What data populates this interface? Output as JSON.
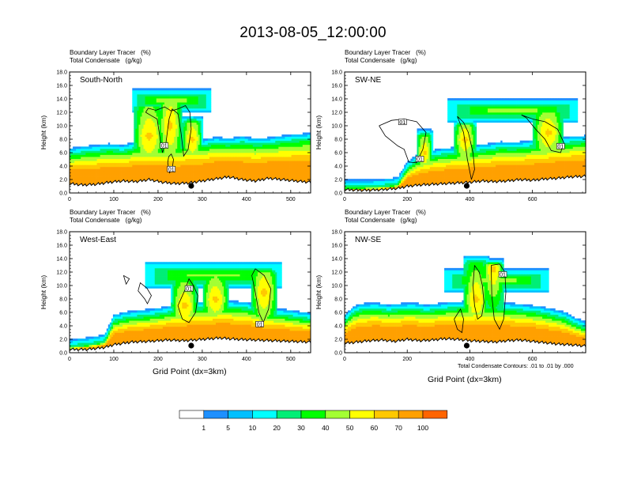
{
  "title": "2013-08-05_12:00:00",
  "header_line1": "Boundary Layer Tracer   (%)",
  "header_line2": "Total Condensate   (g/kg)",
  "x_axis_label": "Grid Point (dx=3km)",
  "contour_note": "Total Condensate Contours: .01 to .01 by .000",
  "colors": {
    "bins": [
      "#ffffff",
      "#1e90ff",
      "#00bfff",
      "#00ffff",
      "#00ee76",
      "#00ff00",
      "#a3ff33",
      "#ffff00",
      "#ffc800",
      "#ffa000",
      "#ff6400",
      "#ff3200",
      "#e60000"
    ]
  },
  "colorbar": {
    "labels": [
      "1",
      "5",
      "10",
      "20",
      "30",
      "40",
      "50",
      "60",
      "70",
      "100"
    ]
  },
  "chart_data": [
    {
      "type": "heatmap",
      "panel_title": "South-North",
      "ylabel": "Height (km)",
      "yticks": [
        "0.0",
        "2.0",
        "4.0",
        "6.0",
        "8.0",
        "10.0",
        "12.0",
        "14.0",
        "16.0",
        "18.0"
      ],
      "ylim": [
        0,
        18
      ],
      "xticks": [
        0,
        100,
        200,
        300,
        400,
        500
      ],
      "xlim": [
        0,
        545
      ],
      "marker_x": 275,
      "terrain": [
        [
          0,
          1.2
        ],
        [
          30,
          1.0
        ],
        [
          60,
          1.1
        ],
        [
          90,
          1.4
        ],
        [
          120,
          1.6
        ],
        [
          150,
          1.5
        ],
        [
          180,
          1.8
        ],
        [
          210,
          1.4
        ],
        [
          240,
          1.2
        ],
        [
          270,
          1.3
        ],
        [
          300,
          1.6
        ],
        [
          330,
          1.9
        ],
        [
          360,
          2.2
        ],
        [
          390,
          1.8
        ],
        [
          420,
          1.6
        ],
        [
          450,
          2.0
        ],
        [
          480,
          1.8
        ],
        [
          510,
          1.6
        ],
        [
          545,
          1.4
        ]
      ],
      "pbl_top": [
        [
          0,
          5.5
        ],
        [
          30,
          5.8
        ],
        [
          60,
          6.0
        ],
        [
          90,
          6.2
        ],
        [
          120,
          6.0
        ],
        [
          150,
          6.5
        ],
        [
          180,
          6.3
        ],
        [
          210,
          6.6
        ],
        [
          240,
          6.4
        ],
        [
          270,
          7.0
        ],
        [
          300,
          6.8
        ],
        [
          330,
          7.2
        ],
        [
          360,
          7.0
        ],
        [
          390,
          7.3
        ],
        [
          420,
          7.0
        ],
        [
          450,
          7.1
        ],
        [
          480,
          7.4
        ],
        [
          510,
          7.6
        ],
        [
          545,
          7.8
        ]
      ],
      "plumes": [
        {
          "x0": 145,
          "x1": 215,
          "base": 5,
          "top": 13.8,
          "core": 8.5
        },
        {
          "x0": 200,
          "x1": 255,
          "base": 5,
          "top": 15.0,
          "core": 10
        },
        {
          "x0": 255,
          "x1": 300,
          "base": 5,
          "top": 11.5,
          "core": 8
        }
      ],
      "anvil": {
        "x0": 140,
        "x1": 320,
        "base": 12.0,
        "top": 15.5
      },
      "contours": [
        [
          [
            172,
            12
          ],
          [
            185,
            11.5
          ],
          [
            198,
            11.0
          ],
          [
            205,
            8.0
          ],
          [
            210,
            6.0
          ],
          [
            218,
            7.5
          ],
          [
            225,
            11
          ],
          [
            232,
            12.5
          ],
          [
            245,
            11.8
          ],
          [
            252,
            9
          ],
          [
            258,
            5.5
          ],
          [
            268,
            6.5
          ],
          [
            275,
            9.5
          ],
          [
            272,
            12
          ],
          [
            262,
            13
          ],
          [
            245,
            12.5
          ],
          [
            230,
            12.2
          ],
          [
            215,
            12.8
          ],
          [
            195,
            12.3
          ],
          [
            178,
            12.6
          ],
          [
            172,
            12
          ]
        ],
        [
          [
            222,
            4.5
          ],
          [
            226,
            3.0
          ],
          [
            232,
            3.5
          ],
          [
            235,
            5.0
          ],
          [
            230,
            5.8
          ],
          [
            224,
            5.4
          ],
          [
            222,
            4.5
          ]
        ]
      ],
      "boxes": [
        {
          "x": 214,
          "y": 7.0,
          "label": "01"
        },
        {
          "x": 230,
          "y": 3.5,
          "label": "01"
        }
      ]
    },
    {
      "type": "heatmap",
      "panel_title": "SW-NE",
      "ylabel": "Height (km)",
      "yticks": [
        "0.0",
        "2.0",
        "4.0",
        "6.0",
        "8.0",
        "10.0",
        "12.0",
        "14.0",
        "16.0",
        "18.0"
      ],
      "ylim": [
        0,
        18
      ],
      "xticks": [
        0,
        200,
        400,
        600
      ],
      "xlim": [
        0,
        770
      ],
      "marker_x": 390,
      "terrain": [
        [
          0,
          0.3
        ],
        [
          60,
          0.2
        ],
        [
          120,
          0.3
        ],
        [
          170,
          0.5
        ],
        [
          200,
          0.8
        ],
        [
          240,
          1.0
        ],
        [
          280,
          1.1
        ],
        [
          320,
          1.2
        ],
        [
          360,
          1.3
        ],
        [
          400,
          1.4
        ],
        [
          440,
          1.6
        ],
        [
          480,
          1.5
        ],
        [
          520,
          1.6
        ],
        [
          560,
          1.8
        ],
        [
          600,
          1.7
        ],
        [
          640,
          1.9
        ],
        [
          680,
          2.0
        ],
        [
          720,
          2.2
        ],
        [
          770,
          2.3
        ]
      ],
      "pbl_top": [
        [
          0,
          0.8
        ],
        [
          60,
          0.8
        ],
        [
          120,
          0.9
        ],
        [
          170,
          1.2
        ],
        [
          200,
          3.5
        ],
        [
          230,
          4.5
        ],
        [
          260,
          5.0
        ],
        [
          300,
          5.4
        ],
        [
          340,
          5.6
        ],
        [
          380,
          5.8
        ],
        [
          420,
          6.0
        ],
        [
          460,
          6.2
        ],
        [
          500,
          6.5
        ],
        [
          540,
          6.4
        ],
        [
          580,
          6.6
        ],
        [
          620,
          6.8
        ],
        [
          660,
          7.0
        ],
        [
          700,
          7.2
        ],
        [
          740,
          7.3
        ],
        [
          770,
          7.4
        ]
      ],
      "plumes": [
        {
          "x0": 230,
          "x1": 280,
          "base": 4,
          "top": 9.5,
          "core": 6
        },
        {
          "x0": 350,
          "x1": 420,
          "base": 5,
          "top": 11.0,
          "core": 8
        },
        {
          "x0": 600,
          "x1": 700,
          "base": 6,
          "top": 13.0,
          "core": 9
        }
      ],
      "anvil": {
        "x0": 330,
        "x1": 745,
        "base": 10.5,
        "top": 14.0
      },
      "contours": [
        [
          [
            110,
            10
          ],
          [
            150,
            10.8
          ],
          [
            190,
            11.0
          ],
          [
            230,
            10.6
          ],
          [
            260,
            9.0
          ],
          [
            250,
            6.5
          ],
          [
            230,
            4.5
          ],
          [
            205,
            4.6
          ],
          [
            190,
            6.5
          ],
          [
            170,
            7.0
          ],
          [
            130,
            8.5
          ],
          [
            110,
            10
          ]
        ],
        [
          [
            360,
            11.4
          ],
          [
            380,
            10.5
          ],
          [
            395,
            9.0
          ],
          [
            410,
            6.0
          ],
          [
            415,
            3.5
          ],
          [
            405,
            2.0
          ],
          [
            392,
            5.0
          ],
          [
            380,
            9.0
          ],
          [
            360,
            11.4
          ]
        ],
        [
          [
            565,
            11.6
          ],
          [
            600,
            11.0
          ],
          [
            640,
            10.6
          ],
          [
            680,
            9.5
          ],
          [
            700,
            7.5
          ],
          [
            690,
            6.0
          ],
          [
            660,
            6.3
          ],
          [
            640,
            8.0
          ],
          [
            610,
            9.5
          ],
          [
            580,
            11.2
          ],
          [
            565,
            11.6
          ]
        ]
      ],
      "boxes": [
        {
          "x": 185,
          "y": 10.5,
          "label": "01"
        },
        {
          "x": 240,
          "y": 5.0,
          "label": "01"
        },
        {
          "x": 690,
          "y": 6.9,
          "label": "01"
        }
      ]
    },
    {
      "type": "heatmap",
      "panel_title": "West-East",
      "ylabel": "Height (km)",
      "yticks": [
        "0.0",
        "2.0",
        "4.0",
        "6.0",
        "8.0",
        "10.0",
        "12.0",
        "14.0",
        "16.0",
        "18.0"
      ],
      "ylim": [
        0,
        18
      ],
      "xticks": [
        0,
        100,
        200,
        300,
        400,
        500
      ],
      "xlim": [
        0,
        545
      ],
      "marker_x": 275,
      "terrain": [
        [
          0,
          0.3
        ],
        [
          40,
          0.3
        ],
        [
          80,
          0.6
        ],
        [
          100,
          1.0
        ],
        [
          140,
          1.4
        ],
        [
          180,
          1.5
        ],
        [
          220,
          1.7
        ],
        [
          260,
          1.6
        ],
        [
          300,
          1.8
        ],
        [
          340,
          2.0
        ],
        [
          380,
          1.8
        ],
        [
          420,
          1.7
        ],
        [
          460,
          1.6
        ],
        [
          500,
          1.5
        ],
        [
          545,
          1.4
        ]
      ],
      "pbl_top": [
        [
          0,
          0.8
        ],
        [
          50,
          1.2
        ],
        [
          80,
          1.6
        ],
        [
          100,
          4.5
        ],
        [
          130,
          5.0
        ],
        [
          160,
          5.2
        ],
        [
          200,
          5.5
        ],
        [
          240,
          6.0
        ],
        [
          280,
          6.4
        ],
        [
          320,
          6.5
        ],
        [
          360,
          6.6
        ],
        [
          400,
          6.4
        ],
        [
          440,
          5.6
        ],
        [
          480,
          5.4
        ],
        [
          520,
          5.0
        ],
        [
          545,
          4.8
        ]
      ],
      "plumes": [
        {
          "x0": 230,
          "x1": 290,
          "base": 5,
          "top": 12.0,
          "core": 7
        },
        {
          "x0": 300,
          "x1": 360,
          "base": 6,
          "top": 12.5,
          "core": 8
        },
        {
          "x0": 410,
          "x1": 470,
          "base": 5,
          "top": 13.0,
          "core": 9
        }
      ],
      "anvil": {
        "x0": 170,
        "x1": 480,
        "base": 9.5,
        "top": 13.5
      },
      "contours": [
        [
          [
            122,
            11.5
          ],
          [
            135,
            11.0
          ],
          [
            128,
            10.2
          ],
          [
            122,
            11.5
          ]
        ],
        [
          [
            155,
            9.2
          ],
          [
            170,
            8.0
          ],
          [
            176,
            7.3
          ],
          [
            185,
            8.5
          ],
          [
            175,
            9.6
          ],
          [
            160,
            10.4
          ],
          [
            155,
            9.2
          ]
        ],
        [
          [
            245,
            7.0
          ],
          [
            262,
            9.5
          ],
          [
            270,
            11.0
          ],
          [
            280,
            10.0
          ],
          [
            290,
            8.5
          ],
          [
            285,
            6.0
          ],
          [
            270,
            4.5
          ],
          [
            255,
            5.0
          ],
          [
            245,
            7.0
          ]
        ],
        [
          [
            420,
            12.5
          ],
          [
            440,
            11.5
          ],
          [
            455,
            9.5
          ],
          [
            450,
            6.5
          ],
          [
            438,
            4.5
          ],
          [
            428,
            6.0
          ],
          [
            420,
            9.0
          ],
          [
            412,
            11.5
          ],
          [
            420,
            12.5
          ]
        ]
      ],
      "boxes": [
        {
          "x": 270,
          "y": 9.5,
          "label": "01"
        },
        {
          "x": 430,
          "y": 4.2,
          "label": "01"
        }
      ]
    },
    {
      "type": "heatmap",
      "panel_title": "NW-SE",
      "ylabel": "Height (km)",
      "yticks": [
        "0.0",
        "2.0",
        "4.0",
        "6.0",
        "8.0",
        "10.0",
        "12.0",
        "14.0",
        "16.0",
        "18.0"
      ],
      "ylim": [
        0,
        18
      ],
      "xticks": [
        0,
        200,
        400,
        600
      ],
      "xlim": [
        0,
        770
      ],
      "marker_x": 390,
      "terrain": [
        [
          0,
          1.2
        ],
        [
          40,
          1.4
        ],
        [
          80,
          1.6
        ],
        [
          120,
          1.7
        ],
        [
          160,
          1.5
        ],
        [
          200,
          1.8
        ],
        [
          240,
          1.6
        ],
        [
          280,
          1.7
        ],
        [
          320,
          1.9
        ],
        [
          360,
          1.8
        ],
        [
          400,
          1.6
        ],
        [
          440,
          1.5
        ],
        [
          480,
          1.4
        ],
        [
          520,
          1.6
        ],
        [
          560,
          1.7
        ],
        [
          600,
          1.5
        ],
        [
          640,
          1.3
        ],
        [
          680,
          1.1
        ],
        [
          720,
          1.0
        ],
        [
          770,
          0.8
        ]
      ],
      "pbl_top": [
        [
          0,
          4.5
        ],
        [
          30,
          5.8
        ],
        [
          60,
          6.2
        ],
        [
          100,
          6.3
        ],
        [
          140,
          6.0
        ],
        [
          180,
          6.2
        ],
        [
          220,
          6.3
        ],
        [
          260,
          6.0
        ],
        [
          300,
          6.2
        ],
        [
          340,
          6.4
        ],
        [
          380,
          6.5
        ],
        [
          420,
          6.7
        ],
        [
          460,
          6.6
        ],
        [
          500,
          6.4
        ],
        [
          540,
          6.2
        ],
        [
          580,
          6.0
        ],
        [
          620,
          5.8
        ],
        [
          660,
          5.4
        ],
        [
          700,
          5.0
        ],
        [
          740,
          4.0
        ],
        [
          770,
          3.5
        ]
      ],
      "plumes": [
        {
          "x0": 380,
          "x1": 460,
          "base": 6,
          "top": 14.5,
          "core": 8
        },
        {
          "x0": 440,
          "x1": 510,
          "base": 6,
          "top": 14.0,
          "core": 12.5
        }
      ],
      "anvil": {
        "x0": 320,
        "x1": 650,
        "base": 9.0,
        "top": 12.5
      },
      "contours": [
        [
          [
            415,
            13
          ],
          [
            430,
            12
          ],
          [
            440,
            10
          ],
          [
            445,
            7.5
          ],
          [
            438,
            5.5
          ],
          [
            425,
            5.0
          ],
          [
            415,
            7.0
          ],
          [
            410,
            10
          ],
          [
            415,
            13
          ]
        ],
        [
          [
            468,
            13
          ],
          [
            495,
            13.2
          ],
          [
            512,
            12.0
          ],
          [
            515,
            9.0
          ],
          [
            508,
            5.0
          ],
          [
            495,
            3.5
          ],
          [
            478,
            5.0
          ],
          [
            470,
            8.5
          ],
          [
            468,
            13
          ]
        ],
        [
          [
            350,
            5.0
          ],
          [
            370,
            6.5
          ],
          [
            380,
            5.0
          ],
          [
            375,
            3.0
          ],
          [
            360,
            3.5
          ],
          [
            350,
            5.0
          ]
        ]
      ],
      "boxes": [
        {
          "x": 505,
          "y": 11.6,
          "label": "01"
        }
      ]
    }
  ]
}
